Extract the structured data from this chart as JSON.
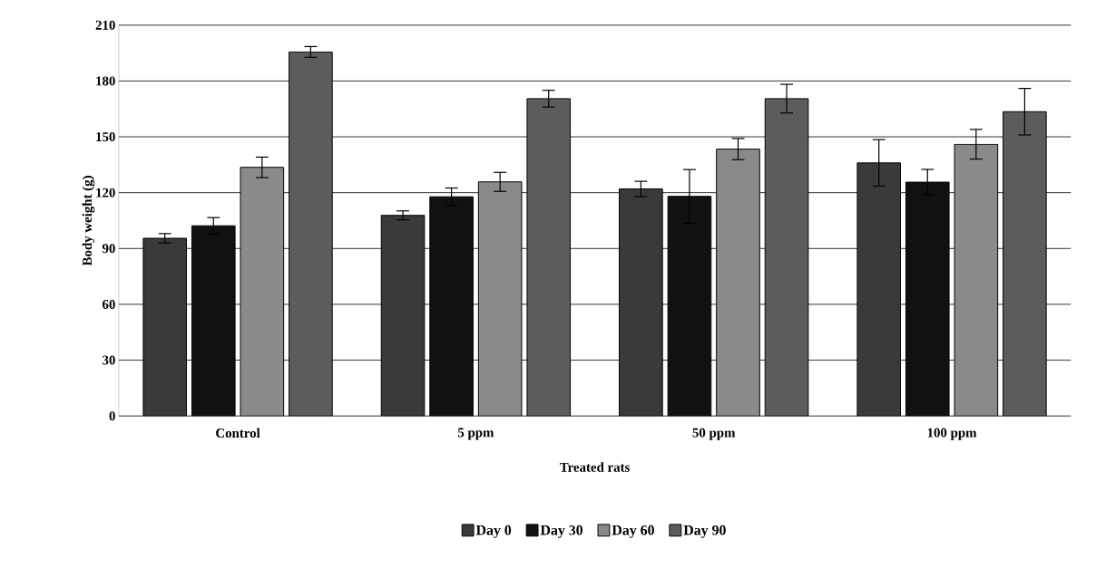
{
  "chart_data": {
    "type": "bar",
    "xlabel": "Treated rats",
    "ylabel": "Body weight  (g)",
    "categories": [
      "Control",
      "5 ppm",
      "50 ppm",
      "100 ppm"
    ],
    "series": [
      {
        "name": "Day 0",
        "color": "#3a3a3a",
        "values": [
          95.5,
          107.8,
          122.0,
          136.0
        ],
        "errors": [
          2.5,
          2.4,
          4.1,
          12.5
        ]
      },
      {
        "name": "Day 30",
        "color": "#111111",
        "values": [
          102.2,
          117.8,
          118.0,
          125.7
        ],
        "errors": [
          4.4,
          4.7,
          14.4,
          6.8
        ]
      },
      {
        "name": "Day 60",
        "color": "#8a8a8a",
        "values": [
          133.6,
          125.8,
          143.4,
          146.0
        ],
        "errors": [
          5.5,
          5.1,
          5.7,
          8.0
        ]
      },
      {
        "name": "Day 90",
        "color": "#5c5c5c",
        "values": [
          195.6,
          170.5,
          170.5,
          163.5
        ],
        "errors": [
          2.9,
          4.5,
          7.7,
          12.5
        ]
      }
    ],
    "ylim": [
      0,
      210
    ],
    "yticks": [
      0,
      30,
      60,
      90,
      120,
      150,
      180,
      210
    ],
    "grid": "y",
    "legend": "bottom"
  }
}
